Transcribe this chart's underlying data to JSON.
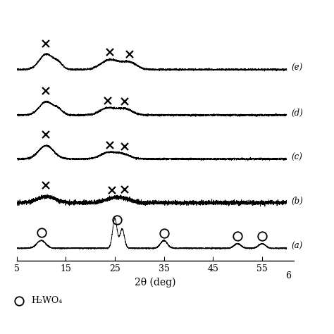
{
  "x_min": 5,
  "x_max": 60,
  "xlabel": "2θ (deg)",
  "labels": [
    "(a)",
    "(b)",
    "(c)",
    "(d)",
    "(e)"
  ],
  "offsets": [
    0.0,
    1.3,
    2.55,
    3.8,
    5.1
  ],
  "curve_color": "black",
  "background": "white",
  "circle_marker_x_a": [
    10.0,
    25.4,
    35.0,
    50.0,
    55.0
  ],
  "cross_marker_b": [
    11.0,
    24.5,
    27.0
  ],
  "cross_marker_c": [
    11.0,
    24.0,
    27.0
  ],
  "cross_marker_d": [
    11.0,
    23.5,
    27.0
  ],
  "cross_marker_e": [
    11.0,
    24.0,
    28.0
  ],
  "legend_text": "H₂WO₄",
  "noise_seed": 42,
  "figsize": [
    4.74,
    4.74
  ],
  "dpi": 100
}
